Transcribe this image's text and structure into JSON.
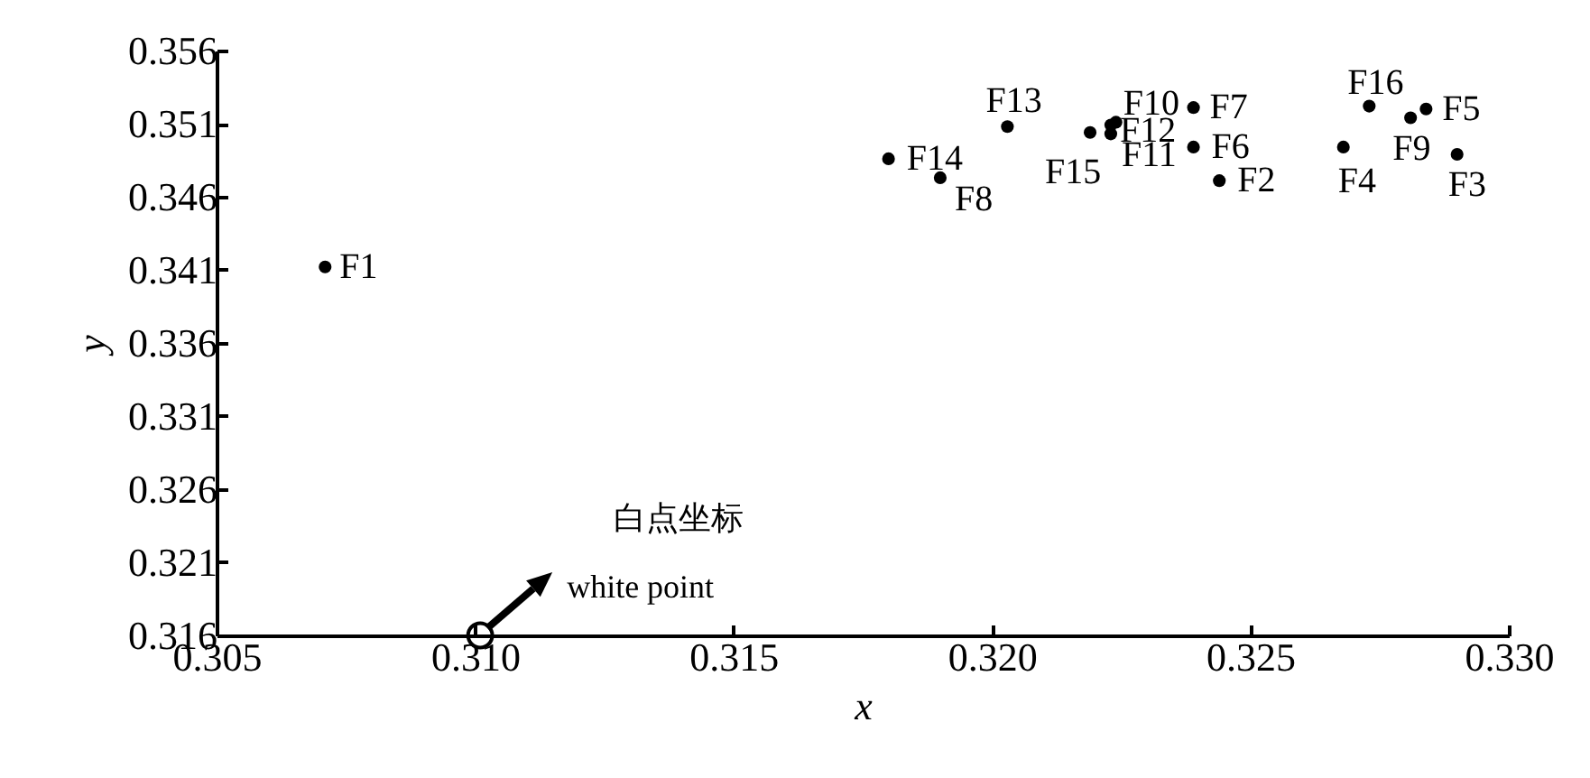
{
  "chart_data": {
    "type": "scatter",
    "xlabel": "x",
    "ylabel": "y",
    "xlim": [
      0.305,
      0.33
    ],
    "xticks": [
      {
        "value": 0.305,
        "label": "0.305"
      },
      {
        "value": 0.31,
        "label": "0.310"
      },
      {
        "value": 0.315,
        "label": "0.315"
      },
      {
        "value": 0.32,
        "label": "0.320"
      },
      {
        "value": 0.325,
        "label": "0.325"
      },
      {
        "value": 0.33,
        "label": "0.330"
      }
    ],
    "ylim": [
      0.316,
      0.356
    ],
    "yticks": [
      0.316,
      0.321,
      0.326,
      0.331,
      0.336,
      0.341,
      0.346,
      0.351,
      0.356
    ],
    "grid": false,
    "series": [
      {
        "color": "#000000",
        "marker": "circle",
        "x": [
          0.3071,
          0.329,
          0.3244,
          0.3268,
          0.3284,
          0.3239,
          0.3239,
          0.319,
          0.3281,
          0.3224,
          0.3223,
          0.3223,
          0.3203,
          0.318,
          0.3219,
          0.3273
        ],
        "values": [
          0.3412,
          0.3489,
          0.3471,
          0.3494,
          0.352,
          0.3494,
          0.3521,
          0.3473,
          0.3514,
          0.3511,
          0.3503,
          0.3509,
          0.3508,
          0.3486,
          0.3504,
          0.3522
        ]
      },
      {
        "color": "#000000",
        "marker": "open_circle",
        "x": [
          0.3101
        ],
        "values": [
          0.316
        ]
      }
    ],
    "annotations": [
      {
        "text": "F1",
        "x": 0.3071,
        "y": 0.3412
      },
      {
        "text": "F3",
        "x": 0.329,
        "y": 0.3489
      },
      {
        "text": "F2",
        "x": 0.3244,
        "y": 0.3471
      },
      {
        "text": "F4",
        "x": 0.3268,
        "y": 0.3494
      },
      {
        "text": "F5",
        "x": 0.3284,
        "y": 0.352
      },
      {
        "text": "F6",
        "x": 0.3239,
        "y": 0.3494
      },
      {
        "text": "F7",
        "x": 0.3239,
        "y": 0.3521
      },
      {
        "text": "F8",
        "x": 0.319,
        "y": 0.3473
      },
      {
        "text": "F9",
        "x": 0.3281,
        "y": 0.3514
      },
      {
        "text": "F10",
        "x": 0.3224,
        "y": 0.3511
      },
      {
        "text": "F11",
        "x": 0.3223,
        "y": 0.3503
      },
      {
        "text": "F12",
        "x": 0.3223,
        "y": 0.3509
      },
      {
        "text": "F13",
        "x": 0.3203,
        "y": 0.3508
      },
      {
        "text": "F14",
        "x": 0.318,
        "y": 0.3486
      },
      {
        "text": "F15",
        "x": 0.3219,
        "y": 0.3504
      },
      {
        "text": "F16",
        "x": 0.3273,
        "y": 0.3522
      },
      "白点坐标",
      {
        "text": "white point",
        "x": 0.3101,
        "y": 0.316
      }
    ]
  }
}
